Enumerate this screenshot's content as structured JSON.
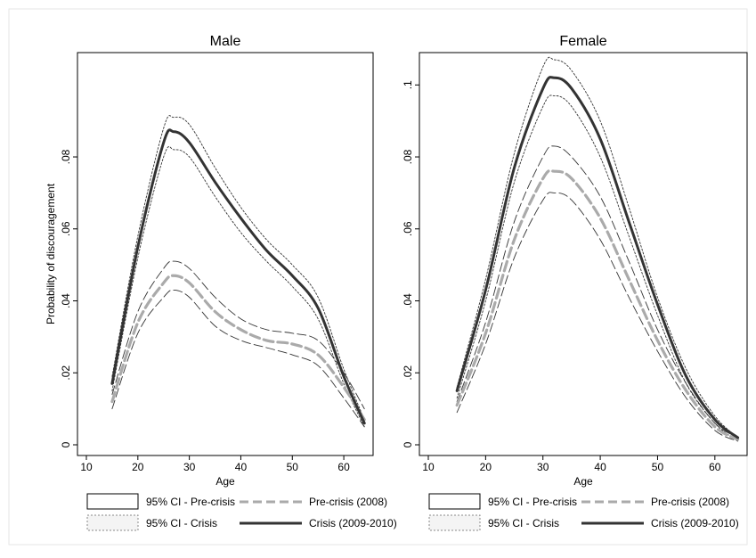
{
  "y_axis_label": "Probability of discouragement",
  "legend": {
    "ci_precrisis": "95% CI - Pre-crisis",
    "ci_crisis": "95% CI - Crisis",
    "precrisis": "Pre-crisis (2008)",
    "crisis": "Crisis (2009-2010)"
  },
  "colors": {
    "crisis": "#333333",
    "precrisis": "#aaaaaa",
    "ci": "#333333"
  },
  "chart_data": [
    {
      "type": "line",
      "title": "Male",
      "xlabel": "Age",
      "ylabel": "Probability of discouragement",
      "xlim": [
        10,
        65
      ],
      "ylim": [
        0,
        0.108
      ],
      "x_ticks": [
        10,
        20,
        30,
        40,
        50,
        60
      ],
      "y_ticks": [
        0,
        0.02,
        0.04,
        0.06,
        0.08
      ],
      "y_tick_labels": [
        "0",
        ".02",
        ".04",
        ".06",
        ".08"
      ],
      "x": [
        15,
        20,
        25,
        27,
        30,
        35,
        40,
        45,
        50,
        55,
        60,
        64
      ],
      "series": [
        {
          "name": "Crisis (2009-2010)",
          "values": [
            0.017,
            0.055,
            0.084,
            0.087,
            0.084,
            0.073,
            0.063,
            0.054,
            0.047,
            0.038,
            0.019,
            0.006
          ]
        },
        {
          "name": "95% CI - Crisis upper",
          "values": [
            0.019,
            0.058,
            0.088,
            0.091,
            0.089,
            0.077,
            0.066,
            0.057,
            0.05,
            0.041,
            0.021,
            0.007
          ]
        },
        {
          "name": "95% CI - Crisis lower",
          "values": [
            0.015,
            0.052,
            0.08,
            0.082,
            0.08,
            0.069,
            0.059,
            0.051,
            0.044,
            0.035,
            0.017,
            0.005
          ]
        },
        {
          "name": "Pre-crisis (2008)",
          "values": [
            0.012,
            0.034,
            0.045,
            0.047,
            0.045,
            0.037,
            0.032,
            0.029,
            0.028,
            0.025,
            0.016,
            0.007
          ]
        },
        {
          "name": "95% CI - Pre-crisis upper",
          "values": [
            0.014,
            0.037,
            0.049,
            0.051,
            0.049,
            0.041,
            0.035,
            0.032,
            0.031,
            0.029,
            0.02,
            0.01
          ]
        },
        {
          "name": "95% CI - Pre-crisis lower",
          "values": [
            0.01,
            0.031,
            0.041,
            0.043,
            0.041,
            0.033,
            0.029,
            0.027,
            0.025,
            0.022,
            0.013,
            0.005
          ]
        }
      ]
    },
    {
      "type": "line",
      "title": "Female",
      "xlabel": "Age",
      "ylabel": "",
      "xlim": [
        10,
        65
      ],
      "ylim": [
        0,
        0.108
      ],
      "x_ticks": [
        10,
        20,
        30,
        40,
        50,
        60
      ],
      "y_ticks": [
        0,
        0.02,
        0.04,
        0.06,
        0.08,
        0.1
      ],
      "y_tick_labels": [
        "0",
        ".02",
        ".04",
        ".06",
        ".08",
        ".1"
      ],
      "x": [
        15,
        20,
        25,
        30,
        32,
        35,
        40,
        45,
        50,
        55,
        60,
        64
      ],
      "series": [
        {
          "name": "Crisis (2009-2010)",
          "values": [
            0.015,
            0.043,
            0.077,
            0.099,
            0.102,
            0.099,
            0.085,
            0.062,
            0.039,
            0.019,
            0.007,
            0.002
          ]
        },
        {
          "name": "95% CI - Crisis upper",
          "values": [
            0.016,
            0.046,
            0.081,
            0.105,
            0.107,
            0.104,
            0.09,
            0.066,
            0.041,
            0.021,
            0.008,
            0.002
          ]
        },
        {
          "name": "95% CI - Crisis lower",
          "values": [
            0.013,
            0.04,
            0.073,
            0.094,
            0.097,
            0.094,
            0.08,
            0.058,
            0.036,
            0.017,
            0.006,
            0.001
          ]
        },
        {
          "name": "Pre-crisis (2008)",
          "values": [
            0.011,
            0.031,
            0.057,
            0.074,
            0.076,
            0.074,
            0.063,
            0.046,
            0.029,
            0.015,
            0.005,
            0.0015
          ]
        },
        {
          "name": "95% CI - Pre-crisis upper",
          "values": [
            0.012,
            0.034,
            0.062,
            0.08,
            0.083,
            0.08,
            0.069,
            0.051,
            0.032,
            0.017,
            0.006,
            0.002
          ]
        },
        {
          "name": "95% CI - Pre-crisis lower",
          "values": [
            0.009,
            0.028,
            0.052,
            0.068,
            0.07,
            0.068,
            0.057,
            0.041,
            0.026,
            0.013,
            0.004,
            0.001
          ]
        }
      ]
    }
  ]
}
